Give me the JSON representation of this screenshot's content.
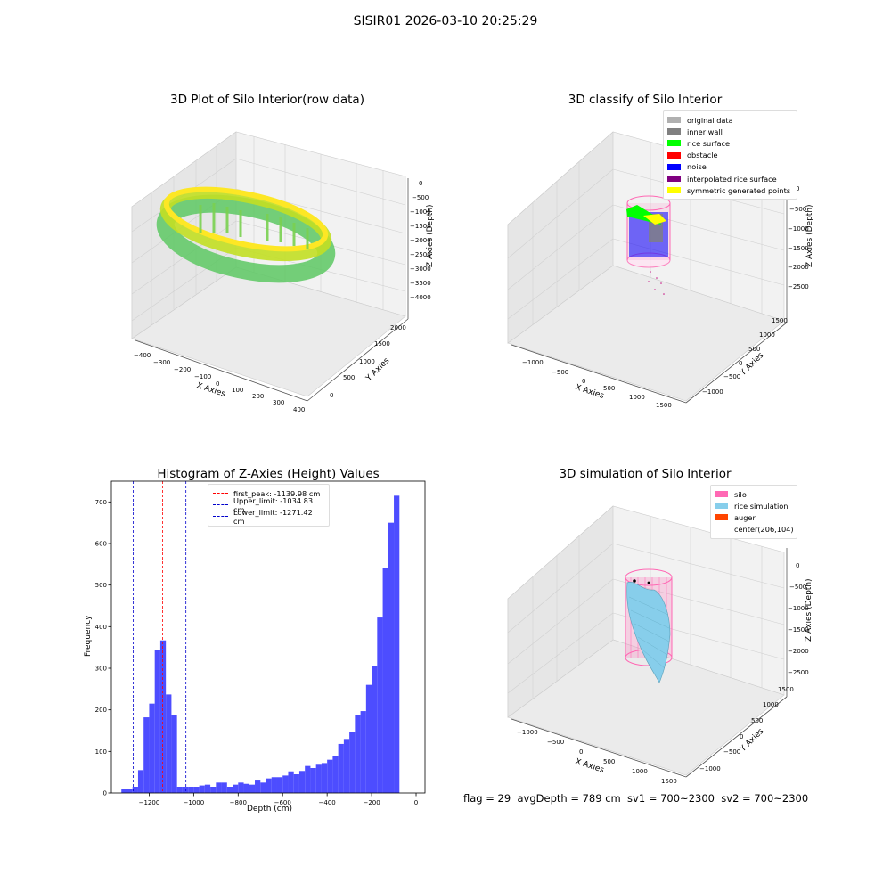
{
  "figure": {
    "suptitle": "SISIR01 2026-03-10 20:25:29",
    "footer": "flag = 29  avgDepth = 789 cm  sv1 = 700~2300  sv2 = 700~2300"
  },
  "colors": {
    "histogram_bar": "#4d4dff",
    "first_peak_line": "#ff0000",
    "limit_line": "#0000cc",
    "silo": "#ff69b4",
    "rice_simulation": "#87ceeb",
    "auger": "#ff4500",
    "original_data": "#b0b0b0",
    "inner_wall": "#808080",
    "rice_surface": "#00ff00",
    "obstacle": "#ff0000",
    "noise": "#0000ff",
    "interpolated_rice_surface": "#800080",
    "symmetric_generated_points": "#ffff00"
  },
  "panel_raw": {
    "title": "3D Plot of Silo Interior(row data)",
    "xlabel": "X Axies",
    "ylabel": "Y Axies",
    "zlabel": "Z Axies (Depth)",
    "xticks": [
      "−400",
      "−300",
      "−200",
      "−100",
      "0",
      "100",
      "200",
      "300",
      "400"
    ],
    "yticks": [
      "0",
      "500",
      "1000",
      "1500",
      "2000"
    ],
    "zticks": [
      "0",
      "−500",
      "−1000",
      "−1500",
      "−2000",
      "−2500",
      "−3000",
      "−3500",
      "−4000"
    ]
  },
  "panel_classify": {
    "title": "3D classify of Silo Interior",
    "xlabel": "X Axies",
    "ylabel": "Y Axies",
    "zlabel": "Z Axies (Depth)",
    "xticks": [
      "−1000",
      "−500",
      "0",
      "500",
      "1000",
      "1500"
    ],
    "yticks": [
      "1500",
      "1000",
      "500",
      "0",
      "−500",
      "−1000"
    ],
    "zticks": [
      "0",
      "−500",
      "−1000",
      "−1500",
      "−2000",
      "−2500"
    ],
    "legend": [
      {
        "label": "original data",
        "color_key": "original_data"
      },
      {
        "label": "inner wall",
        "color_key": "inner_wall"
      },
      {
        "label": "rice surface",
        "color_key": "rice_surface"
      },
      {
        "label": "obstacle",
        "color_key": "obstacle"
      },
      {
        "label": "noise",
        "color_key": "noise"
      },
      {
        "label": "interpolated rice surface",
        "color_key": "interpolated_rice_surface"
      },
      {
        "label": "symmetric generated points",
        "color_key": "symmetric_generated_points"
      }
    ]
  },
  "panel_sim": {
    "title": "3D simulation of Silo Interior",
    "xlabel": "X Axies",
    "ylabel": "Y Axies",
    "zlabel": "Z Axies (Depth)",
    "xticks": [
      "−1000",
      "−500",
      "0",
      "500",
      "1000",
      "1500"
    ],
    "yticks": [
      "1500",
      "1000",
      "500",
      "0",
      "−500",
      "−1000"
    ],
    "zticks": [
      "0",
      "−500",
      "−1000",
      "−1500",
      "−2000",
      "−2500"
    ],
    "legend": [
      {
        "label": "silo",
        "color_key": "silo"
      },
      {
        "label": "rice simulation",
        "color_key": "rice_simulation"
      },
      {
        "label": "auger",
        "color_key": "auger"
      },
      {
        "label": "center(206,104)",
        "color_key": ""
      }
    ]
  },
  "chart_data": {
    "type": "bar",
    "title": "Histogram of Z-Axies (Height) Values",
    "xlabel": "Depth (cm)",
    "ylabel": "Frequency",
    "xlim": [
      -1370,
      40
    ],
    "ylim": [
      0,
      750
    ],
    "xticks": [
      -1200,
      -1000,
      -800,
      -600,
      -400,
      -200,
      0
    ],
    "xtick_labels": [
      "−1200",
      "−1000",
      "−800",
      "−600",
      "−400",
      "−200",
      "0"
    ],
    "yticks": [
      0,
      100,
      200,
      300,
      400,
      500,
      600,
      700
    ],
    "yticks_labels": [
      "0",
      "100",
      "200",
      "300",
      "400",
      "500",
      "600",
      "700"
    ],
    "bin_width": 25,
    "bin_left_edges": [
      -1325,
      -1300,
      -1275,
      -1250,
      -1225,
      -1200,
      -1175,
      -1150,
      -1125,
      -1100,
      -1075,
      -1050,
      -1025,
      -1000,
      -975,
      -950,
      -925,
      -900,
      -875,
      -850,
      -825,
      -800,
      -775,
      -750,
      -725,
      -700,
      -675,
      -650,
      -625,
      -600,
      -575,
      -550,
      -525,
      -500,
      -475,
      -450,
      -425,
      -400,
      -375,
      -350,
      -325,
      -300,
      -275,
      -250,
      -225,
      -200,
      -175,
      -150,
      -125,
      -100,
      -75,
      -50,
      -25
    ],
    "counts": [
      10,
      10,
      15,
      55,
      182,
      215,
      343,
      367,
      237,
      188,
      15,
      15,
      15,
      15,
      18,
      20,
      15,
      25,
      25,
      15,
      20,
      25,
      22,
      20,
      32,
      25,
      35,
      38,
      38,
      42,
      52,
      45,
      53,
      65,
      60,
      68,
      72,
      80,
      90,
      118,
      130,
      147,
      188,
      197,
      260,
      305,
      422,
      540,
      650,
      715,
      0,
      0,
      0
    ],
    "vlines": [
      {
        "label": "first_peak: -1139.98 cm",
        "x": -1139.98,
        "color_key": "first_peak_line"
      },
      {
        "label": "Upper_limit: -1034.83 cm",
        "x": -1034.83,
        "color_key": "limit_line"
      },
      {
        "label": "Lower_limit: -1271.42 cm",
        "x": -1271.42,
        "color_key": "limit_line"
      }
    ],
    "legend_position": "upper center"
  }
}
